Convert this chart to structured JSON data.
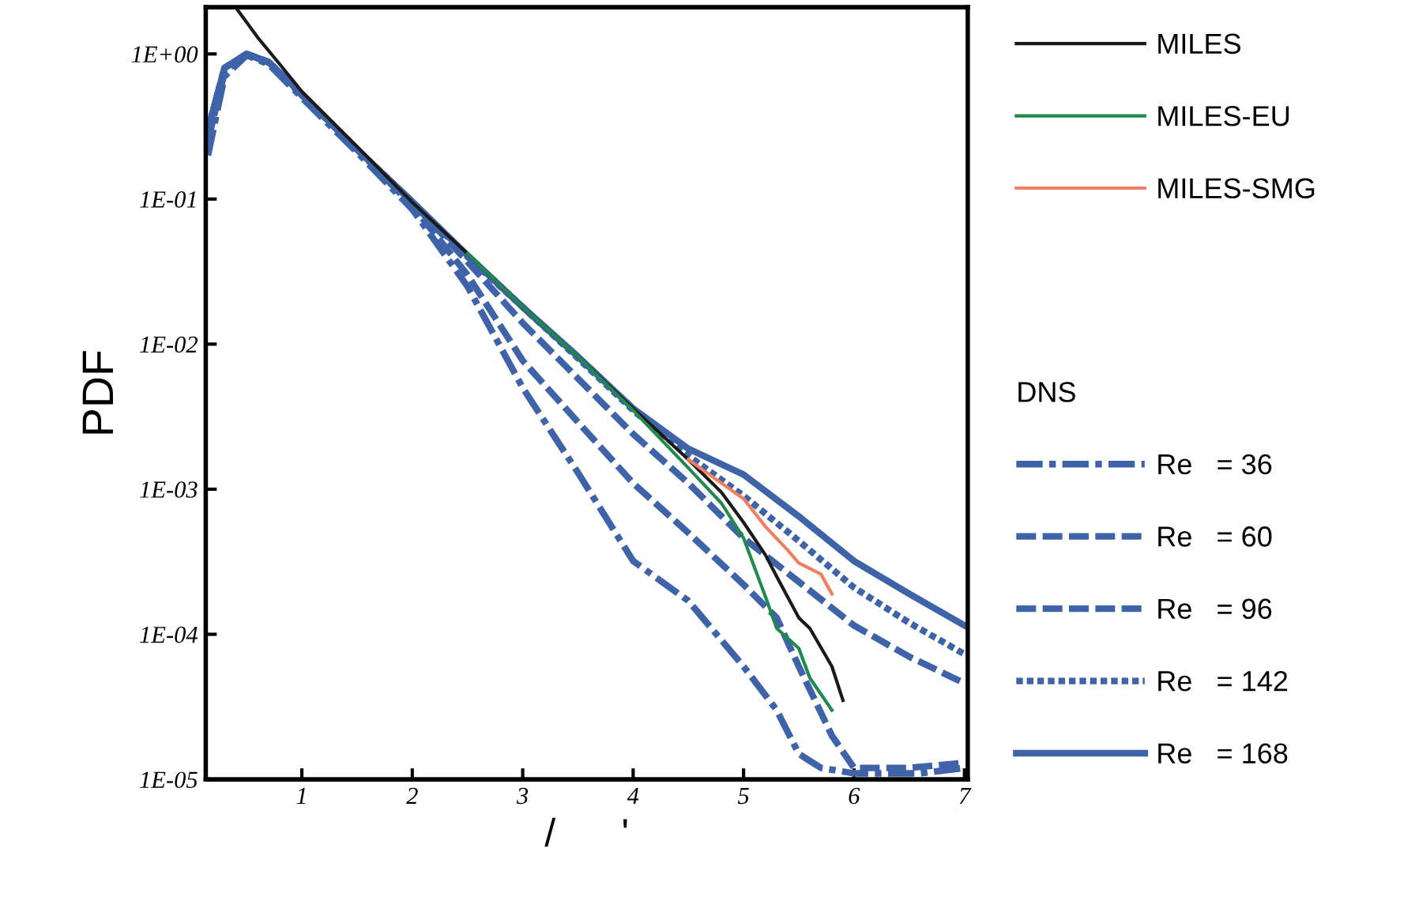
{
  "chart_data": {
    "type": "line",
    "xlabel": "/      '",
    "ylabel": "PDF",
    "log": "y",
    "grid": false,
    "legend": "right",
    "legend_title": "DNS",
    "xlim": [
      0.13,
      7.03
    ],
    "xticks": [
      1,
      2,
      3,
      4,
      5,
      6,
      7
    ],
    "ylim": [
      1e-05,
      2.1
    ],
    "yticks": [
      {
        "value": 1,
        "label": "1E+00"
      },
      {
        "value": 0.1,
        "label": "1E-01"
      },
      {
        "value": 0.01,
        "label": "1E-02"
      },
      {
        "value": 0.001,
        "label": "1E-03"
      },
      {
        "value": 0.0001,
        "label": "1E-04"
      },
      {
        "value": 1e-05,
        "label": "1E-05"
      }
    ],
    "series": [
      {
        "name": "MILES",
        "color": "#1a1a1a",
        "line_style": "solid",
        "x": [
          0.42,
          0.6,
          0.8,
          1,
          1.5,
          2,
          2.5,
          3,
          3.5,
          4,
          4.5,
          4.8,
          5,
          5.2,
          5.3,
          5.5,
          5.6,
          5.8,
          5.9
        ],
        "values": [
          2.0,
          1.3,
          0.85,
          0.55,
          0.23,
          0.095,
          0.042,
          0.018,
          0.0082,
          0.0036,
          0.0016,
          0.00095,
          0.00059,
          0.00035,
          0.00025,
          0.00013,
          0.00011,
          6e-05,
          3.5e-05
        ]
      },
      {
        "name": "MILES-EU",
        "color": "#1f8a4c",
        "line_style": "solid",
        "x": [
          2.5,
          3,
          3.5,
          4,
          4.5,
          4.8,
          5,
          5.2,
          5.3,
          5.5,
          5.6,
          5.8
        ],
        "values": [
          0.042,
          0.018,
          0.0082,
          0.0035,
          0.0014,
          0.0008,
          0.00046,
          0.00018,
          0.00011,
          8e-05,
          5e-05,
          3e-05
        ]
      },
      {
        "name": "MILES-SMG",
        "color": "#f07f5f",
        "line_style": "solid",
        "x": [
          4.5,
          4.8,
          5,
          5.2,
          5.4,
          5.5,
          5.7,
          5.8
        ],
        "values": [
          0.0016,
          0.0011,
          0.00086,
          0.00055,
          0.00038,
          0.00031,
          0.00026,
          0.00019
        ]
      },
      {
        "name": "Re   = 36",
        "color": "#3e63a8",
        "line_style": "dashdot",
        "x": [
          0.15,
          0.3,
          0.5,
          0.7,
          1,
          1.5,
          2,
          2.5,
          3,
          3.5,
          4,
          4.5,
          5,
          5.3,
          5.5,
          5.7,
          6,
          6.3,
          6.6,
          7
        ],
        "values": [
          0.2,
          0.7,
          0.98,
          0.85,
          0.5,
          0.21,
          0.085,
          0.025,
          0.005,
          0.0013,
          0.00032,
          0.00017,
          6e-05,
          3e-05,
          1.5e-05,
          1.2e-05,
          1.1e-05,
          1.1e-05,
          1.1e-05,
          1.2e-05
        ]
      },
      {
        "name": "Re   = 60",
        "color": "#3e63a8",
        "line_style": "dashed",
        "x": [
          0.15,
          0.3,
          0.5,
          0.7,
          1,
          1.5,
          2,
          2.5,
          3,
          3.5,
          4,
          4.5,
          5,
          5.3,
          5.5,
          5.8,
          6,
          6.5,
          7
        ],
        "values": [
          0.25,
          0.75,
          1.0,
          0.87,
          0.52,
          0.22,
          0.09,
          0.03,
          0.0077,
          0.0029,
          0.0011,
          0.0005,
          0.00022,
          0.00013,
          6e-05,
          2e-05,
          1.2e-05,
          1.2e-05,
          1.3e-05
        ]
      },
      {
        "name": "Re   = 96",
        "color": "#3e63a8",
        "line_style": "dashed",
        "x": [
          0.15,
          0.3,
          0.5,
          0.7,
          1,
          1.5,
          2,
          2.5,
          3,
          3.5,
          4,
          4.5,
          5,
          5.5,
          6,
          6.5,
          7
        ],
        "values": [
          0.3,
          0.8,
          1.0,
          0.88,
          0.53,
          0.22,
          0.095,
          0.037,
          0.014,
          0.0058,
          0.0024,
          0.0011,
          0.00046,
          0.00023,
          0.000115,
          7e-05,
          4.6e-05
        ]
      },
      {
        "name": "Re   = 142",
        "color": "#3e63a8",
        "line_style": "dotted",
        "x": [
          0.15,
          0.3,
          0.5,
          0.7,
          1,
          1.5,
          2,
          2.5,
          3,
          3.5,
          4,
          4.5,
          5,
          5.5,
          6,
          6.5,
          7
        ],
        "values": [
          0.3,
          0.8,
          1.0,
          0.88,
          0.53,
          0.22,
          0.096,
          0.04,
          0.018,
          0.008,
          0.0035,
          0.0017,
          0.0009,
          0.00044,
          0.00021,
          0.00012,
          7.3e-05
        ]
      },
      {
        "name": "Re   = 168",
        "color": "#3e63a8",
        "line_style": "solid",
        "x": [
          0.15,
          0.3,
          0.5,
          0.7,
          1,
          1.5,
          2,
          2.5,
          3,
          3.5,
          4,
          4.5,
          5,
          5.5,
          6,
          6.5,
          7
        ],
        "values": [
          0.3,
          0.8,
          1.0,
          0.88,
          0.53,
          0.22,
          0.096,
          0.041,
          0.018,
          0.0082,
          0.0036,
          0.0019,
          0.00126,
          0.00065,
          0.00032,
          0.00019,
          0.000115
        ]
      }
    ]
  }
}
